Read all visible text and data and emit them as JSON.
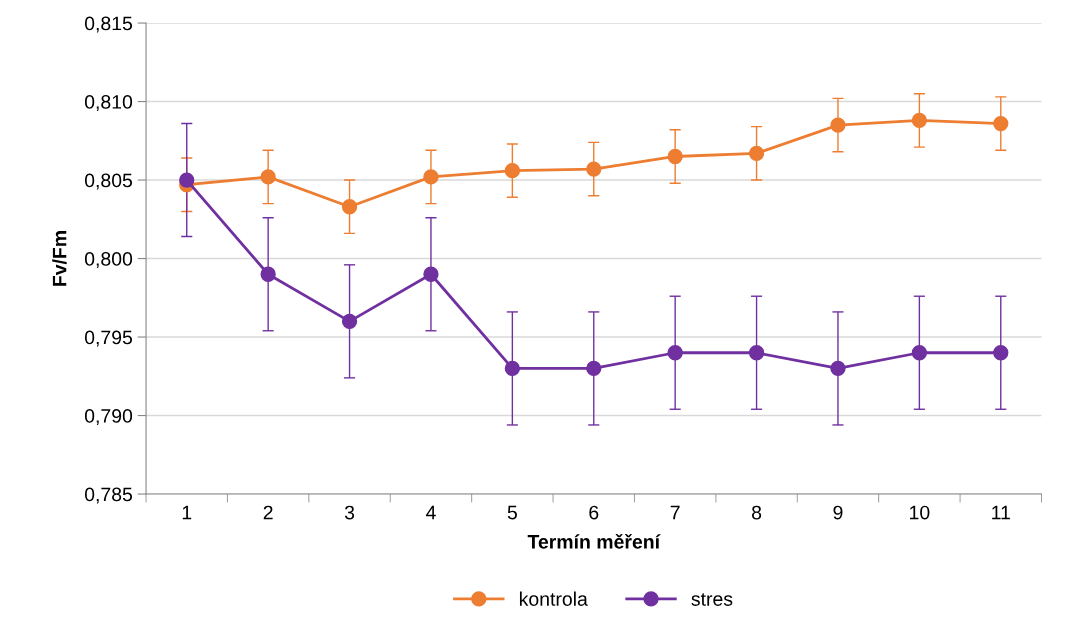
{
  "chart_data": {
    "type": "line",
    "xlabel": "Termín měření",
    "ylabel": "Fv/Fm",
    "categories": [
      "1",
      "2",
      "3",
      "4",
      "5",
      "6",
      "7",
      "8",
      "9",
      "10",
      "11"
    ],
    "series": [
      {
        "name": "kontrola",
        "color": "#ed7d31",
        "values": [
          0.8047,
          0.8052,
          0.8033,
          0.8052,
          0.8056,
          0.8057,
          0.8065,
          0.8067,
          0.8085,
          0.8088,
          0.8086
        ],
        "errors": [
          0.0017,
          0.0017,
          0.0017,
          0.0017,
          0.0017,
          0.0017,
          0.0017,
          0.0017,
          0.0017,
          0.0017,
          0.0017
        ]
      },
      {
        "name": "stres",
        "color": "#7030a0",
        "values": [
          0.805,
          0.799,
          0.796,
          0.799,
          0.793,
          0.793,
          0.794,
          0.794,
          0.793,
          0.794,
          0.794
        ],
        "errors": [
          0.0036,
          0.0036,
          0.0036,
          0.0036,
          0.0036,
          0.0036,
          0.0036,
          0.0036,
          0.0036,
          0.0036,
          0.0036
        ]
      }
    ],
    "ylim": [
      0.785,
      0.815
    ],
    "yticks": [
      {
        "value": 0.785,
        "label": "0,785"
      },
      {
        "value": 0.79,
        "label": "0,790"
      },
      {
        "value": 0.795,
        "label": "0,795"
      },
      {
        "value": 0.8,
        "label": "0,800"
      },
      {
        "value": 0.805,
        "label": "0,805"
      },
      {
        "value": 0.81,
        "label": "0,810"
      },
      {
        "value": 0.815,
        "label": "0,815"
      }
    ],
    "grid": "y",
    "legend": "bottom",
    "marker": "circle",
    "line_style": "solid"
  }
}
